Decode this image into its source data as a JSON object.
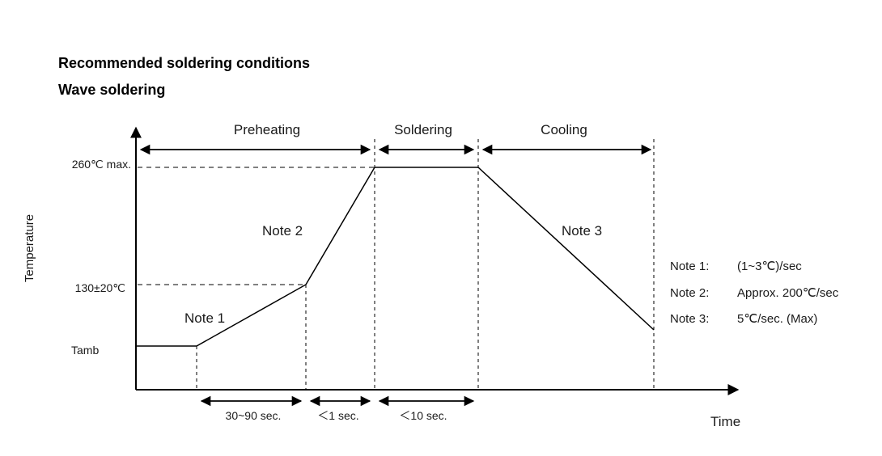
{
  "header": {
    "title": "Recommended soldering conditions",
    "subtitle": "Wave soldering"
  },
  "phases": {
    "preheating": "Preheating",
    "soldering": "Soldering",
    "cooling": "Cooling"
  },
  "axes": {
    "y_label": "Temperature",
    "x_label": "Time"
  },
  "levels": {
    "peak": "260℃ max.",
    "mid": "130±20℃",
    "ambient": "Tamb"
  },
  "curve_labels": {
    "note1": "Note 1",
    "note2": "Note 2",
    "note3": "Note 3"
  },
  "durations": {
    "d1": "30~90 sec.",
    "d2": "＜1 sec.",
    "d3": "＜10 sec."
  },
  "notes": [
    {
      "label": "Note 1:",
      "value": "(1~3℃)/sec"
    },
    {
      "label": "Note 2:",
      "value": "Approx. 200℃/sec"
    },
    {
      "label": "Note 3:",
      "value": "5℃/sec. (Max)"
    }
  ]
}
